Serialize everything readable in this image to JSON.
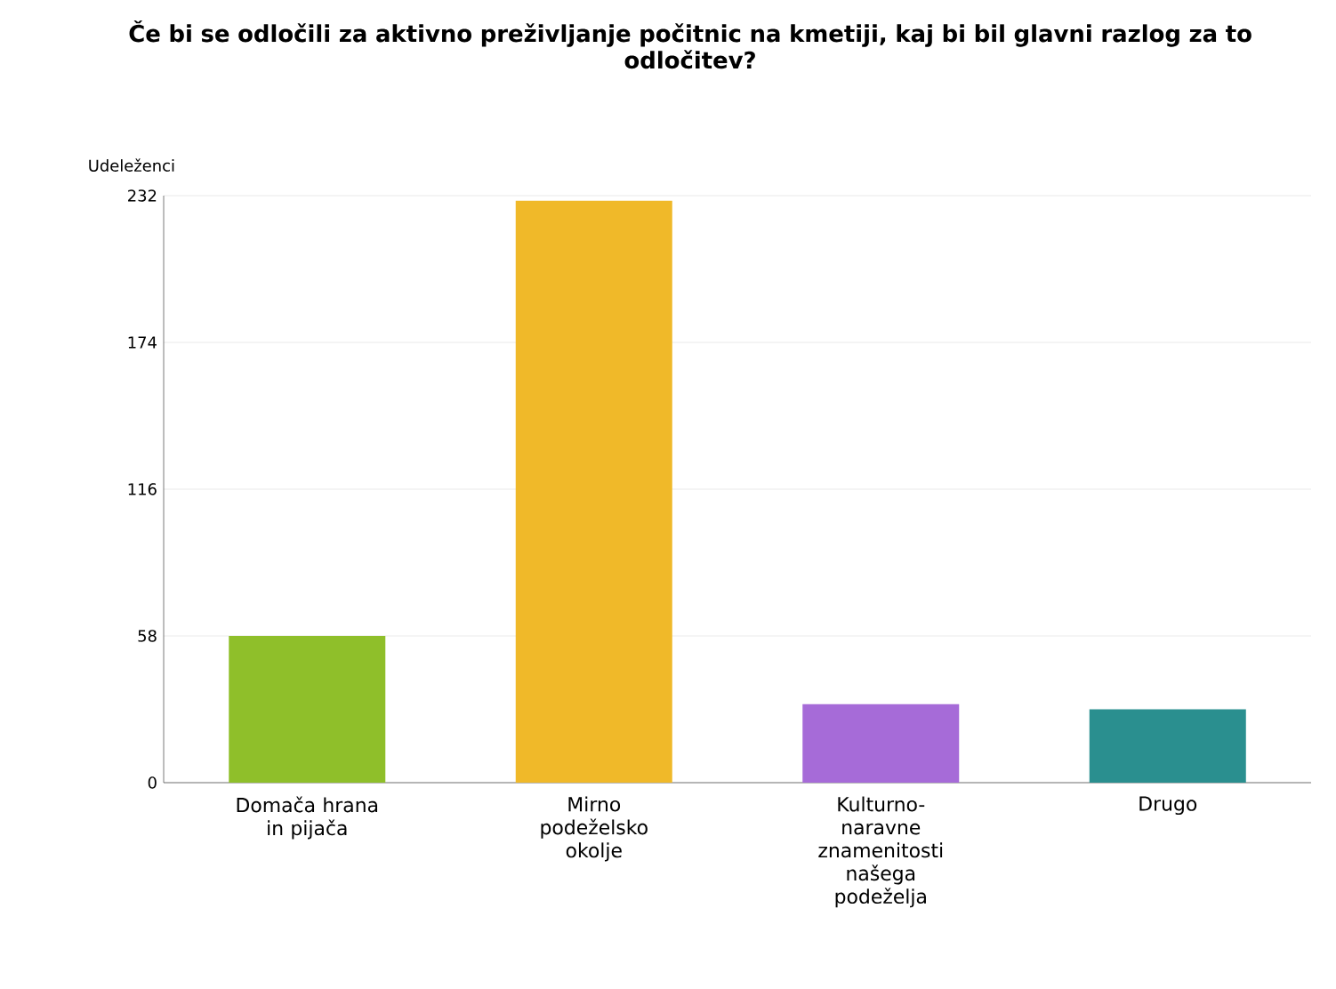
{
  "chart_data": {
    "type": "bar",
    "title": "Če bi se odločili za aktivno preživljanje počitnic na kmetiji, kaj bi bil glavni razlog za to odločitev?",
    "ylabel": "Udeleženci",
    "categories": [
      "Domača hrana in pijača",
      "Mirno podeželsko okolje",
      "Kulturno-naravne znamenitosti našega podeželja",
      "Drugo"
    ],
    "values": [
      58,
      230,
      31,
      29
    ],
    "colors": [
      "#8fbf2a",
      "#f0b929",
      "#a66bd8",
      "#2a8f8f"
    ],
    "ylim": [
      0,
      232
    ],
    "yticks": [
      0,
      58,
      116,
      174,
      232
    ],
    "grid": "y"
  }
}
